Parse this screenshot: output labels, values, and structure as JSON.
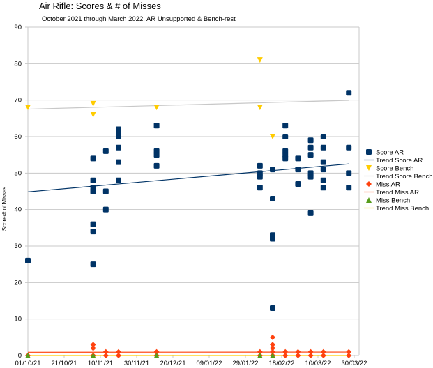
{
  "chart_data": {
    "type": "scatter",
    "title": "Air Rifle: Scores & # of Misses",
    "subtitle": "October 2021 through March 2022, AR Unsupported & Bench-rest",
    "xlabel": "",
    "ylabel": "Score/# of Misses",
    "ylim": [
      0,
      90
    ],
    "yticks": [
      0,
      10,
      20,
      30,
      40,
      50,
      60,
      70,
      80,
      90
    ],
    "x_range_days": [
      "2021-10-01",
      "2022-03-30"
    ],
    "xticks": [
      "01/10/21",
      "21/10/21",
      "10/11/21",
      "30/11/21",
      "20/12/21",
      "09/01/22",
      "29/01/22",
      "18/02/22",
      "10/03/22",
      "30/03/22"
    ],
    "grid": true,
    "legend_position": "right",
    "series": [
      {
        "name": "Score AR",
        "type": "scatter",
        "marker": "square",
        "color": "#003366",
        "points": [
          [
            "2021-10-01",
            26
          ],
          [
            "2021-11-06",
            54
          ],
          [
            "2021-11-06",
            48
          ],
          [
            "2021-11-06",
            46
          ],
          [
            "2021-11-06",
            45
          ],
          [
            "2021-11-06",
            45
          ],
          [
            "2021-11-06",
            36
          ],
          [
            "2021-11-06",
            34
          ],
          [
            "2021-11-06",
            25
          ],
          [
            "2021-11-13",
            56
          ],
          [
            "2021-11-13",
            45
          ],
          [
            "2021-11-13",
            40
          ],
          [
            "2021-11-20",
            62
          ],
          [
            "2021-11-20",
            61
          ],
          [
            "2021-11-20",
            60
          ],
          [
            "2021-11-20",
            57
          ],
          [
            "2021-11-20",
            53
          ],
          [
            "2021-11-20",
            48
          ],
          [
            "2021-12-11",
            63
          ],
          [
            "2021-12-11",
            56
          ],
          [
            "2021-12-11",
            55
          ],
          [
            "2021-12-11",
            52
          ],
          [
            "2022-02-06",
            52
          ],
          [
            "2022-02-06",
            50
          ],
          [
            "2022-02-06",
            49
          ],
          [
            "2022-02-06",
            46
          ],
          [
            "2022-02-13",
            51
          ],
          [
            "2022-02-13",
            43
          ],
          [
            "2022-02-13",
            33
          ],
          [
            "2022-02-13",
            32
          ],
          [
            "2022-02-13",
            13
          ],
          [
            "2022-02-20",
            63
          ],
          [
            "2022-02-20",
            60
          ],
          [
            "2022-02-20",
            56
          ],
          [
            "2022-02-20",
            55
          ],
          [
            "2022-02-20",
            54
          ],
          [
            "2022-02-27",
            54
          ],
          [
            "2022-02-27",
            51
          ],
          [
            "2022-02-27",
            47
          ],
          [
            "2022-03-06",
            59
          ],
          [
            "2022-03-06",
            57
          ],
          [
            "2022-03-06",
            55
          ],
          [
            "2022-03-06",
            50
          ],
          [
            "2022-03-06",
            49
          ],
          [
            "2022-03-06",
            39
          ],
          [
            "2022-03-13",
            60
          ],
          [
            "2022-03-13",
            57
          ],
          [
            "2022-03-13",
            53
          ],
          [
            "2022-03-13",
            51
          ],
          [
            "2022-03-13",
            48
          ],
          [
            "2022-03-13",
            46
          ],
          [
            "2022-03-27",
            72
          ],
          [
            "2022-03-27",
            57
          ],
          [
            "2022-03-27",
            50
          ],
          [
            "2022-03-27",
            46
          ]
        ]
      },
      {
        "name": "Trend Score AR",
        "type": "trend",
        "of": "Score AR",
        "color": "#003366"
      },
      {
        "name": "Score Bench",
        "type": "scatter",
        "marker": "triangle-down",
        "color": "#ffcc00",
        "points": [
          [
            "2021-10-01",
            68
          ],
          [
            "2021-11-06",
            69
          ],
          [
            "2021-11-06",
            66
          ],
          [
            "2021-12-11",
            68
          ],
          [
            "2022-02-06",
            81
          ],
          [
            "2022-02-06",
            68
          ],
          [
            "2022-02-13",
            60
          ]
        ]
      },
      {
        "name": "Trend Score Bench",
        "type": "trend",
        "of": "Score Bench",
        "color": "#c8c8c8"
      },
      {
        "name": "Miss AR",
        "type": "scatter",
        "marker": "diamond",
        "color": "#ff420e",
        "points": [
          [
            "2021-10-01",
            0
          ],
          [
            "2021-11-06",
            3
          ],
          [
            "2021-11-06",
            2
          ],
          [
            "2021-11-06",
            0
          ],
          [
            "2021-11-13",
            1
          ],
          [
            "2021-11-13",
            0
          ],
          [
            "2021-11-20",
            1
          ],
          [
            "2021-11-20",
            0
          ],
          [
            "2021-12-11",
            1
          ],
          [
            "2021-12-11",
            0
          ],
          [
            "2022-02-06",
            1
          ],
          [
            "2022-02-06",
            0
          ],
          [
            "2022-02-13",
            5
          ],
          [
            "2022-02-13",
            3
          ],
          [
            "2022-02-13",
            2
          ],
          [
            "2022-02-13",
            1
          ],
          [
            "2022-02-13",
            0
          ],
          [
            "2022-02-20",
            1
          ],
          [
            "2022-02-20",
            0
          ],
          [
            "2022-02-27",
            1
          ],
          [
            "2022-02-27",
            0
          ],
          [
            "2022-03-06",
            1
          ],
          [
            "2022-03-06",
            0
          ],
          [
            "2022-03-13",
            1
          ],
          [
            "2022-03-13",
            0
          ],
          [
            "2022-03-27",
            1
          ],
          [
            "2022-03-27",
            0
          ]
        ]
      },
      {
        "name": "Trend Miss AR",
        "type": "trend",
        "of": "Miss AR",
        "color": "#ff420e"
      },
      {
        "name": "Miss Bench",
        "type": "scatter",
        "marker": "triangle-up",
        "color": "#579d1c",
        "points": [
          [
            "2021-10-01",
            0
          ],
          [
            "2021-11-06",
            0
          ],
          [
            "2021-12-11",
            0
          ],
          [
            "2022-02-06",
            0
          ],
          [
            "2022-02-13",
            0
          ]
        ]
      },
      {
        "name": "Trend Miss Bench",
        "type": "trend",
        "of": "Score Bench",
        "color": "#ffcc00"
      }
    ]
  }
}
